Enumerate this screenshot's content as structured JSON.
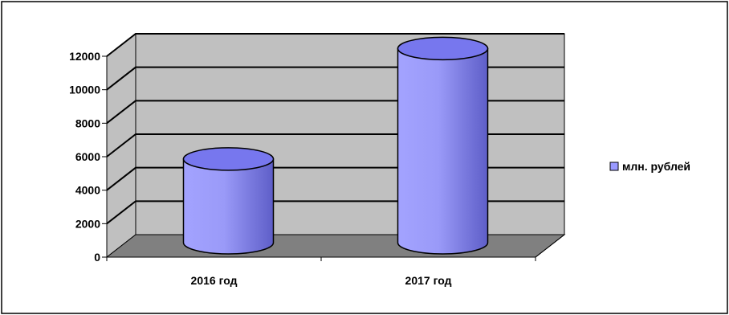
{
  "chart_data": {
    "type": "bar",
    "style": "3d-cylinder",
    "categories": [
      "2016 год",
      "2017 год"
    ],
    "series": [
      {
        "name": "млн. рублей",
        "values": [
          5000,
          11600
        ]
      }
    ],
    "yticks": [
      "0",
      "2000",
      "4000",
      "6000",
      "8000",
      "10000",
      "12000"
    ],
    "ylim": [
      0,
      12000
    ],
    "grid": true,
    "legend_position": "right",
    "title": "",
    "xlabel": "",
    "ylabel": ""
  },
  "colors": {
    "wall": "#c0c0c0",
    "floor": "#808080",
    "bar_fill": "#9999ff",
    "bar_top": "#7777ee",
    "gridline": "#000000"
  }
}
